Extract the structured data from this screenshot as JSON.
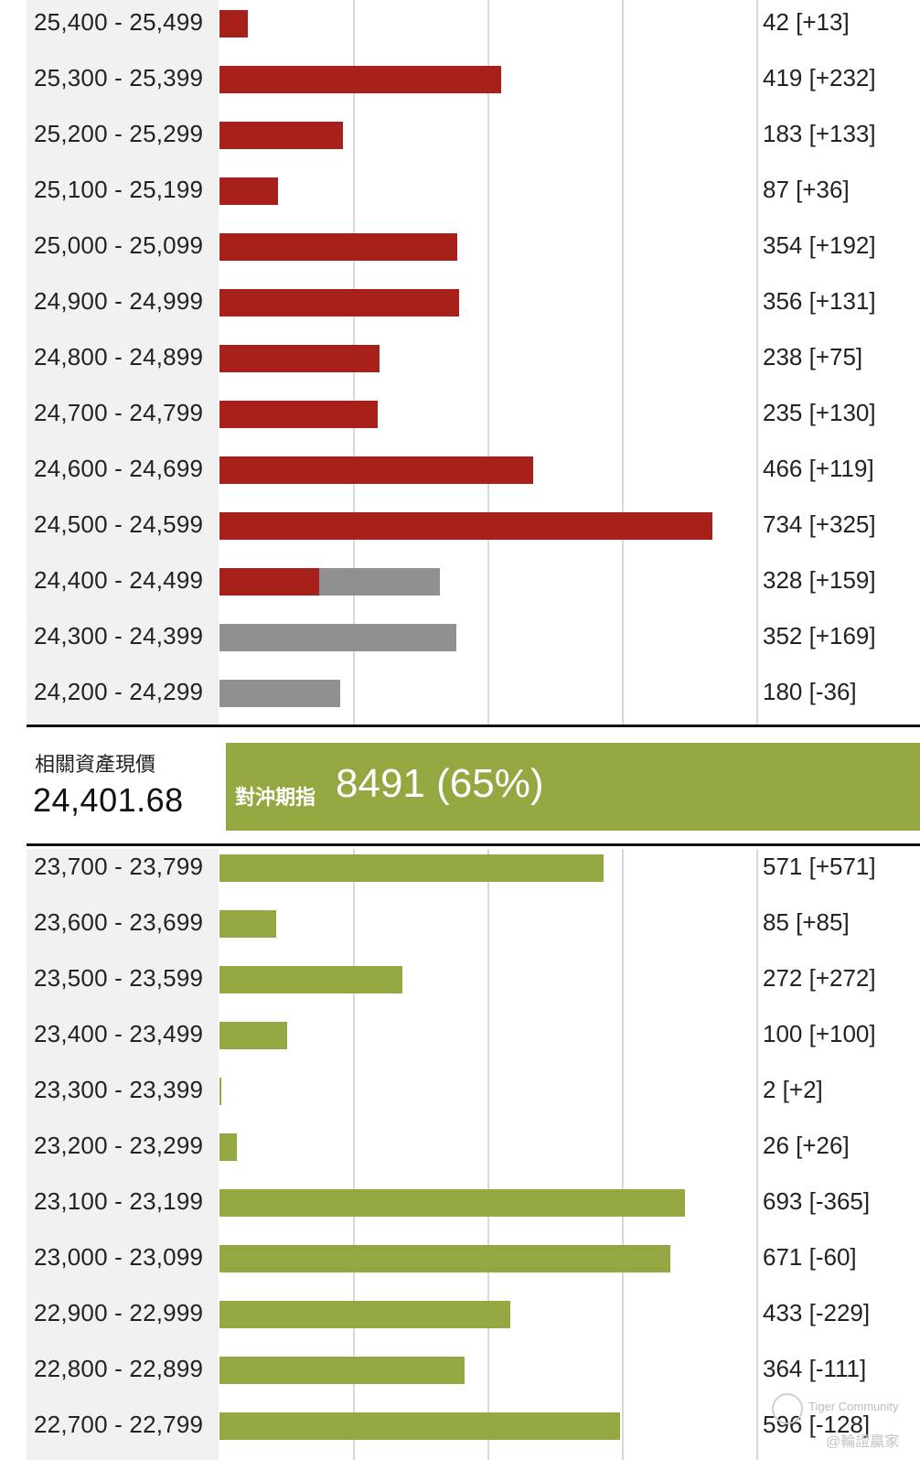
{
  "chart_data": {
    "type": "bar",
    "orientation": "horizontal",
    "grid": true,
    "xlim": [
      0,
      1000
    ],
    "gridlines": [
      200,
      400,
      600,
      800
    ],
    "colors": {
      "call": "#a8201a",
      "put": "#93a840",
      "gray": "#909090"
    },
    "upper_rows": [
      {
        "range": "25,400 - 25,499",
        "value": 42,
        "change": "[+13]",
        "label": "42 [+13]",
        "segments": [
          {
            "value": 42,
            "color": "call"
          }
        ]
      },
      {
        "range": "25,300 - 25,399",
        "value": 419,
        "change": "[+232]",
        "label": "419 [+232]",
        "segments": [
          {
            "value": 419,
            "color": "call"
          }
        ]
      },
      {
        "range": "25,200 - 25,299",
        "value": 183,
        "change": "[+133]",
        "label": "183 [+133]",
        "segments": [
          {
            "value": 183,
            "color": "call"
          }
        ]
      },
      {
        "range": "25,100 - 25,199",
        "value": 87,
        "change": "[+36]",
        "label": "87 [+36]",
        "segments": [
          {
            "value": 87,
            "color": "call"
          }
        ]
      },
      {
        "range": "25,000 - 25,099",
        "value": 354,
        "change": "[+192]",
        "label": "354 [+192]",
        "segments": [
          {
            "value": 354,
            "color": "call"
          }
        ]
      },
      {
        "range": "24,900 - 24,999",
        "value": 356,
        "change": "[+131]",
        "label": "356 [+131]",
        "segments": [
          {
            "value": 356,
            "color": "call"
          }
        ]
      },
      {
        "range": "24,800 - 24,899",
        "value": 238,
        "change": "[+75]",
        "label": "238 [+75]",
        "segments": [
          {
            "value": 238,
            "color": "call"
          }
        ]
      },
      {
        "range": "24,700 - 24,799",
        "value": 235,
        "change": "[+130]",
        "label": "235 [+130]",
        "segments": [
          {
            "value": 235,
            "color": "call"
          }
        ]
      },
      {
        "range": "24,600 - 24,699",
        "value": 466,
        "change": "[+119]",
        "label": "466 [+119]",
        "segments": [
          {
            "value": 466,
            "color": "call"
          }
        ]
      },
      {
        "range": "24,500 - 24,599",
        "value": 734,
        "change": "[+325]",
        "label": "734 [+325]",
        "segments": [
          {
            "value": 734,
            "color": "call"
          }
        ]
      },
      {
        "range": "24,400 - 24,499",
        "value": 328,
        "change": "[+159]",
        "label": "328 [+159]",
        "segments": [
          {
            "value": 148,
            "color": "call"
          },
          {
            "value": 180,
            "color": "gray"
          }
        ]
      },
      {
        "range": "24,300 - 24,399",
        "value": 352,
        "change": "[+169]",
        "label": "352 [+169]",
        "segments": [
          {
            "value": 352,
            "color": "gray"
          }
        ]
      },
      {
        "range": "24,200 - 24,299",
        "value": 180,
        "change": "[-36]",
        "label": "180 [-36]",
        "segments": [
          {
            "value": 180,
            "color": "gray"
          }
        ]
      }
    ],
    "lower_rows": [
      {
        "range": "23,700 - 23,799",
        "value": 571,
        "change": "[+571]",
        "label": "571 [+571]",
        "segments": [
          {
            "value": 571,
            "color": "put"
          }
        ]
      },
      {
        "range": "23,600 - 23,699",
        "value": 85,
        "change": "[+85]",
        "label": "85 [+85]",
        "segments": [
          {
            "value": 85,
            "color": "put"
          }
        ]
      },
      {
        "range": "23,500 - 23,599",
        "value": 272,
        "change": "[+272]",
        "label": "272 [+272]",
        "segments": [
          {
            "value": 272,
            "color": "put"
          }
        ]
      },
      {
        "range": "23,400 - 23,499",
        "value": 100,
        "change": "[+100]",
        "label": "100 [+100]",
        "segments": [
          {
            "value": 100,
            "color": "put"
          }
        ]
      },
      {
        "range": "23,300 - 23,399",
        "value": 2,
        "change": "[+2]",
        "label": "2 [+2]",
        "segments": [
          {
            "value": 2,
            "color": "put"
          }
        ]
      },
      {
        "range": "23,200 - 23,299",
        "value": 26,
        "change": "[+26]",
        "label": "26 [+26]",
        "segments": [
          {
            "value": 26,
            "color": "put"
          }
        ]
      },
      {
        "range": "23,100 - 23,199",
        "value": 693,
        "change": "[-365]",
        "label": "693 [-365]",
        "segments": [
          {
            "value": 693,
            "color": "put"
          }
        ]
      },
      {
        "range": "23,000 - 23,099",
        "value": 671,
        "change": "[-60]",
        "label": "671 [-60]",
        "segments": [
          {
            "value": 671,
            "color": "put"
          }
        ]
      },
      {
        "range": "22,900 - 22,999",
        "value": 433,
        "change": "[-229]",
        "label": "433 [-229]",
        "segments": [
          {
            "value": 433,
            "color": "put"
          }
        ]
      },
      {
        "range": "22,800 - 22,899",
        "value": 364,
        "change": "[-111]",
        "label": "364 [-111]",
        "segments": [
          {
            "value": 364,
            "color": "put"
          }
        ]
      },
      {
        "range": "22,700 - 22,799",
        "value": 596,
        "change": "[-128]",
        "label": "596 [-128]",
        "segments": [
          {
            "value": 596,
            "color": "put"
          }
        ]
      }
    ]
  },
  "spot": {
    "title": "相關資產現價",
    "value": "24,401.68"
  },
  "hedge": {
    "label": "對沖期指",
    "value": "8491 (65%)"
  },
  "watermark": {
    "en": "Tiger Community",
    "zh": "@輪證贏家"
  }
}
